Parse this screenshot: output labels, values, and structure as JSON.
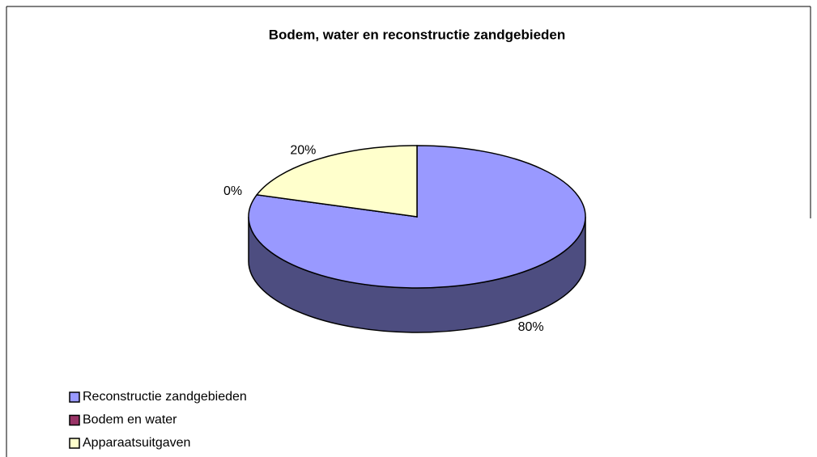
{
  "chart_data": {
    "type": "pie3d",
    "title": "Bodem, water en reconstructie zandgebieden",
    "categories": [
      "Reconstructie zandgebieden",
      "Bodem en water",
      "Apparaatsuitgaven"
    ],
    "values": [
      80,
      0,
      20
    ],
    "value_labels": [
      "80%",
      "0%",
      "20%"
    ],
    "colors": [
      "#9999ff",
      "#993366",
      "#ffffcc"
    ],
    "legend": "bottom-left"
  }
}
